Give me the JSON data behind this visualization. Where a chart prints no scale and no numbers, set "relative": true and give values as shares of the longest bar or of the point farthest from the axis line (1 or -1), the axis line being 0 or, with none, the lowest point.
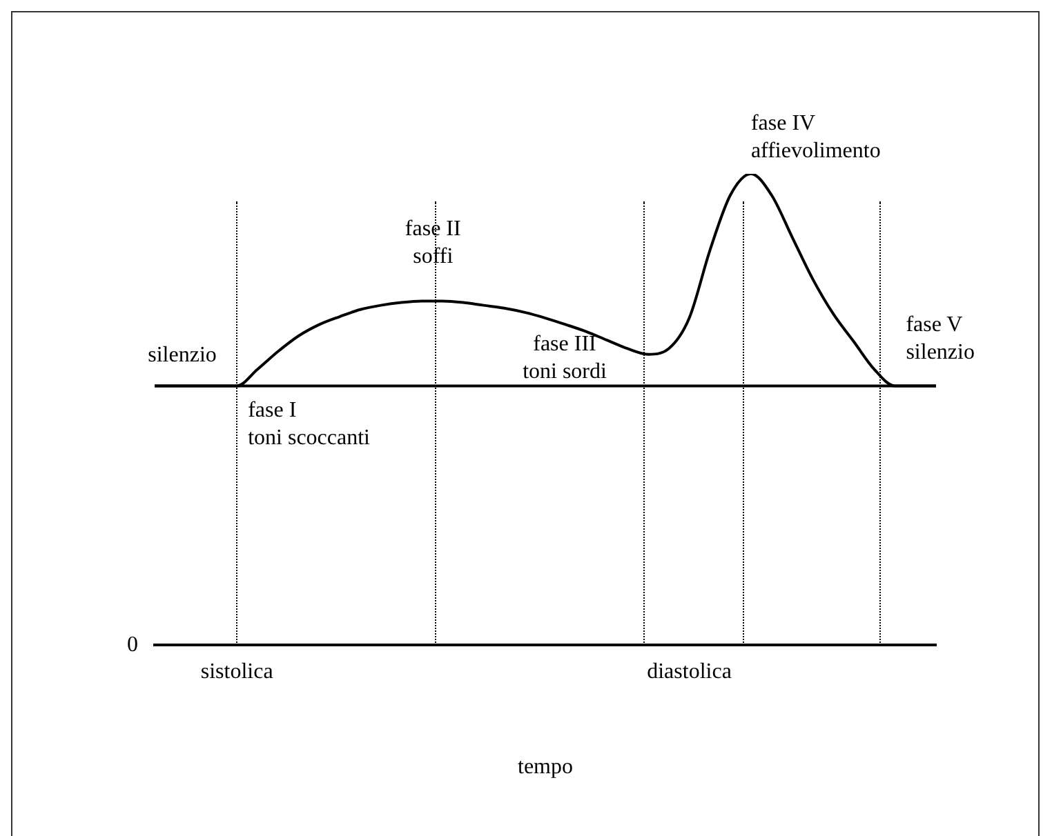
{
  "chart_data": {
    "type": "line",
    "relative": true,
    "xlabel": "tempo",
    "categories": [
      null,
      null,
      null,
      null,
      "sistolica",
      null,
      null,
      null,
      null,
      null,
      null,
      null,
      null,
      null,
      null,
      null,
      null,
      null,
      null,
      null,
      null,
      null,
      null,
      null,
      null,
      null,
      "diastolica",
      null,
      null,
      null,
      null,
      null,
      null,
      null,
      null,
      null,
      null,
      null,
      null
    ],
    "series": [
      {
        "color": "#000000",
        "values": [
          0.55,
          0.55,
          0.55,
          0.55,
          0.55,
          0.585,
          0.623,
          0.656,
          0.68,
          0.697,
          0.712,
          0.721,
          0.727,
          0.73,
          0.73,
          0.727,
          0.721,
          0.715,
          0.706,
          0.694,
          0.68,
          0.665,
          0.647,
          0.629,
          0.617,
          0.629,
          0.694,
          0.837,
          0.955,
          1,
          0.955,
          0.866,
          0.777,
          0.703,
          0.644,
          0.585,
          0.55,
          0.55,
          0.55
        ]
      }
    ],
    "ref_lines": [
      {
        "axis": "y",
        "value": 0.55,
        "color": "#000000",
        "line_style": "solid"
      }
    ],
    "annotations": [
      "0",
      "silenzio",
      "fase I\ntoni scoccanti",
      "fase II\nsoffi",
      "fase III\ntoni sordi",
      "fase IV\naffievolimento",
      "fase V\nsilenzio"
    ],
    "grid": "x",
    "legend": false,
    "marker": "none",
    "line_style": "solid"
  }
}
